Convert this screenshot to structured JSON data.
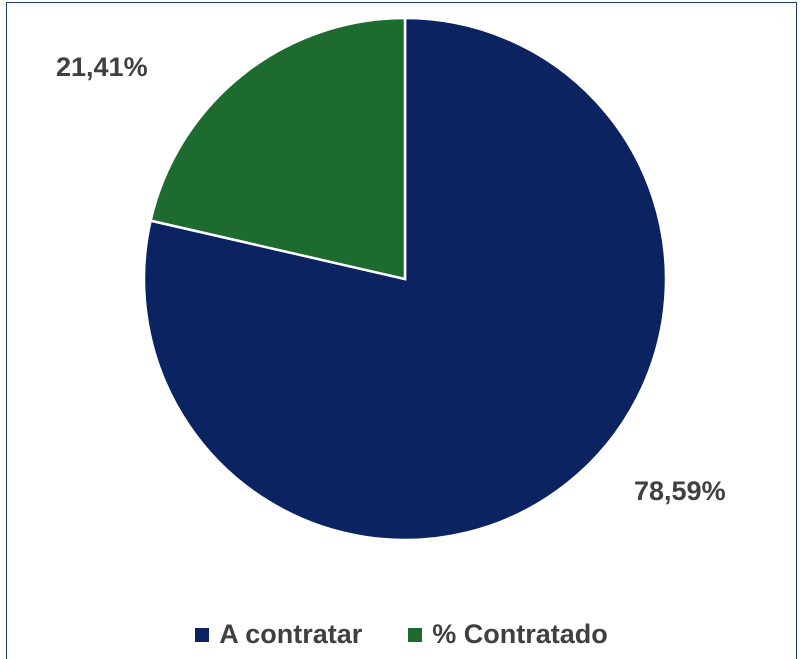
{
  "chart_data": {
    "type": "pie",
    "title": "",
    "slices": [
      {
        "name": "A contratar",
        "value": 78.59,
        "label": "78,59%",
        "color": "#0b2461"
      },
      {
        "name": "% Contratado",
        "value": 21.41,
        "label": "21,41%",
        "color": "#1e6b2f"
      }
    ],
    "start_angle_deg": 0,
    "direction": "counterclockwise",
    "legend_position": "bottom",
    "slice_border_color": "#ffffff"
  },
  "legend": {
    "items": [
      {
        "label": "A contratar",
        "color": "#0b2461"
      },
      {
        "label": "% Contratado",
        "color": "#1e6b2f"
      }
    ]
  }
}
